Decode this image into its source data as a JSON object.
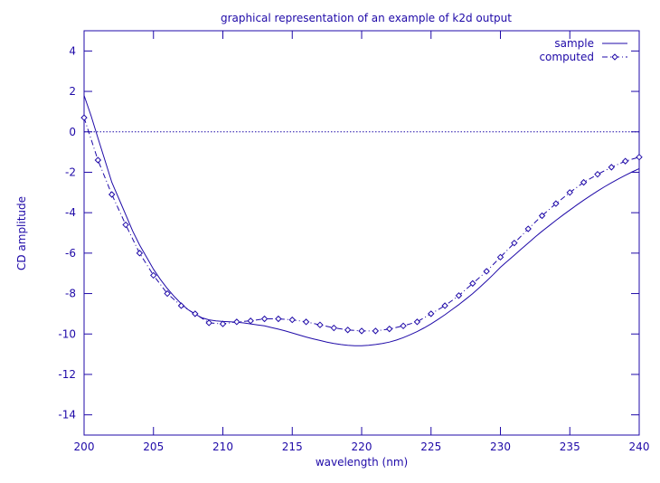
{
  "chart_data": {
    "type": "line",
    "title": "graphical representation of an example of k2d output",
    "xlabel": "wavelength (nm)",
    "ylabel": "CD amplitude",
    "xlim": [
      200,
      240
    ],
    "ylim": [
      -15,
      5
    ],
    "x_ticks": [
      200,
      205,
      210,
      215,
      220,
      225,
      230,
      235,
      240
    ],
    "y_ticks": [
      4,
      2,
      0,
      -2,
      -4,
      -6,
      -8,
      -10,
      -12,
      -14
    ],
    "zero_line": true,
    "legend_position": "top-right",
    "colors": {
      "axis": "#1f0aa8",
      "series": "#1f0aa8"
    },
    "series": [
      {
        "name": "sample",
        "style": "solid",
        "x": [
          200,
          200.5,
          201,
          201.5,
          202,
          202.5,
          203,
          203.5,
          204,
          204.5,
          205,
          205.5,
          206,
          206.5,
          207,
          207.5,
          208,
          208.5,
          209,
          209.5,
          210,
          210.5,
          211,
          211.5,
          212,
          212.5,
          213,
          213.5,
          214,
          214.5,
          215,
          215.5,
          216,
          216.5,
          217,
          217.5,
          218,
          218.5,
          219,
          219.5,
          220,
          220.5,
          221,
          221.5,
          222,
          222.5,
          223,
          223.5,
          224,
          224.5,
          225,
          225.5,
          226,
          226.5,
          227,
          227.5,
          228,
          228.5,
          229,
          229.5,
          230,
          230.5,
          231,
          231.5,
          232,
          232.5,
          233,
          233.5,
          234,
          234.5,
          235,
          235.5,
          236,
          236.5,
          237,
          237.5,
          238,
          238.5,
          239,
          239.5,
          240
        ],
        "values": [
          1.8,
          0.8,
          -0.3,
          -1.4,
          -2.5,
          -3.3,
          -4.1,
          -4.9,
          -5.6,
          -6.2,
          -6.8,
          -7.3,
          -7.75,
          -8.15,
          -8.5,
          -8.8,
          -9.02,
          -9.2,
          -9.3,
          -9.35,
          -9.38,
          -9.4,
          -9.42,
          -9.45,
          -9.5,
          -9.55,
          -9.6,
          -9.68,
          -9.76,
          -9.85,
          -9.95,
          -10.05,
          -10.15,
          -10.24,
          -10.32,
          -10.4,
          -10.47,
          -10.52,
          -10.56,
          -10.58,
          -10.58,
          -10.56,
          -10.52,
          -10.47,
          -10.4,
          -10.3,
          -10.18,
          -10.04,
          -9.88,
          -9.7,
          -9.5,
          -9.28,
          -9.05,
          -8.8,
          -8.55,
          -8.28,
          -8.0,
          -7.7,
          -7.38,
          -7.05,
          -6.7,
          -6.4,
          -6.1,
          -5.8,
          -5.5,
          -5.2,
          -4.92,
          -4.65,
          -4.38,
          -4.12,
          -3.87,
          -3.62,
          -3.38,
          -3.15,
          -2.93,
          -2.72,
          -2.52,
          -2.33,
          -2.15,
          -1.98,
          -1.82
        ]
      },
      {
        "name": "computed",
        "style": "dash-dot-diamond",
        "x": [
          200,
          201,
          202,
          203,
          204,
          205,
          206,
          207,
          208,
          209,
          210,
          211,
          212,
          213,
          214,
          215,
          216,
          217,
          218,
          219,
          220,
          221,
          222,
          223,
          224,
          225,
          226,
          227,
          228,
          229,
          230,
          231,
          232,
          233,
          234,
          235,
          236,
          237,
          238,
          239,
          240
        ],
        "values": [
          0.7,
          -1.4,
          -3.1,
          -4.6,
          -6.0,
          -7.1,
          -8.0,
          -8.6,
          -9.0,
          -9.45,
          -9.5,
          -9.4,
          -9.35,
          -9.25,
          -9.25,
          -9.3,
          -9.4,
          -9.55,
          -9.7,
          -9.8,
          -9.85,
          -9.85,
          -9.75,
          -9.6,
          -9.4,
          -9.0,
          -8.6,
          -8.1,
          -7.5,
          -6.9,
          -6.2,
          -5.5,
          -4.8,
          -4.15,
          -3.55,
          -3.0,
          -2.5,
          -2.1,
          -1.75,
          -1.45,
          -1.25
        ]
      }
    ]
  }
}
